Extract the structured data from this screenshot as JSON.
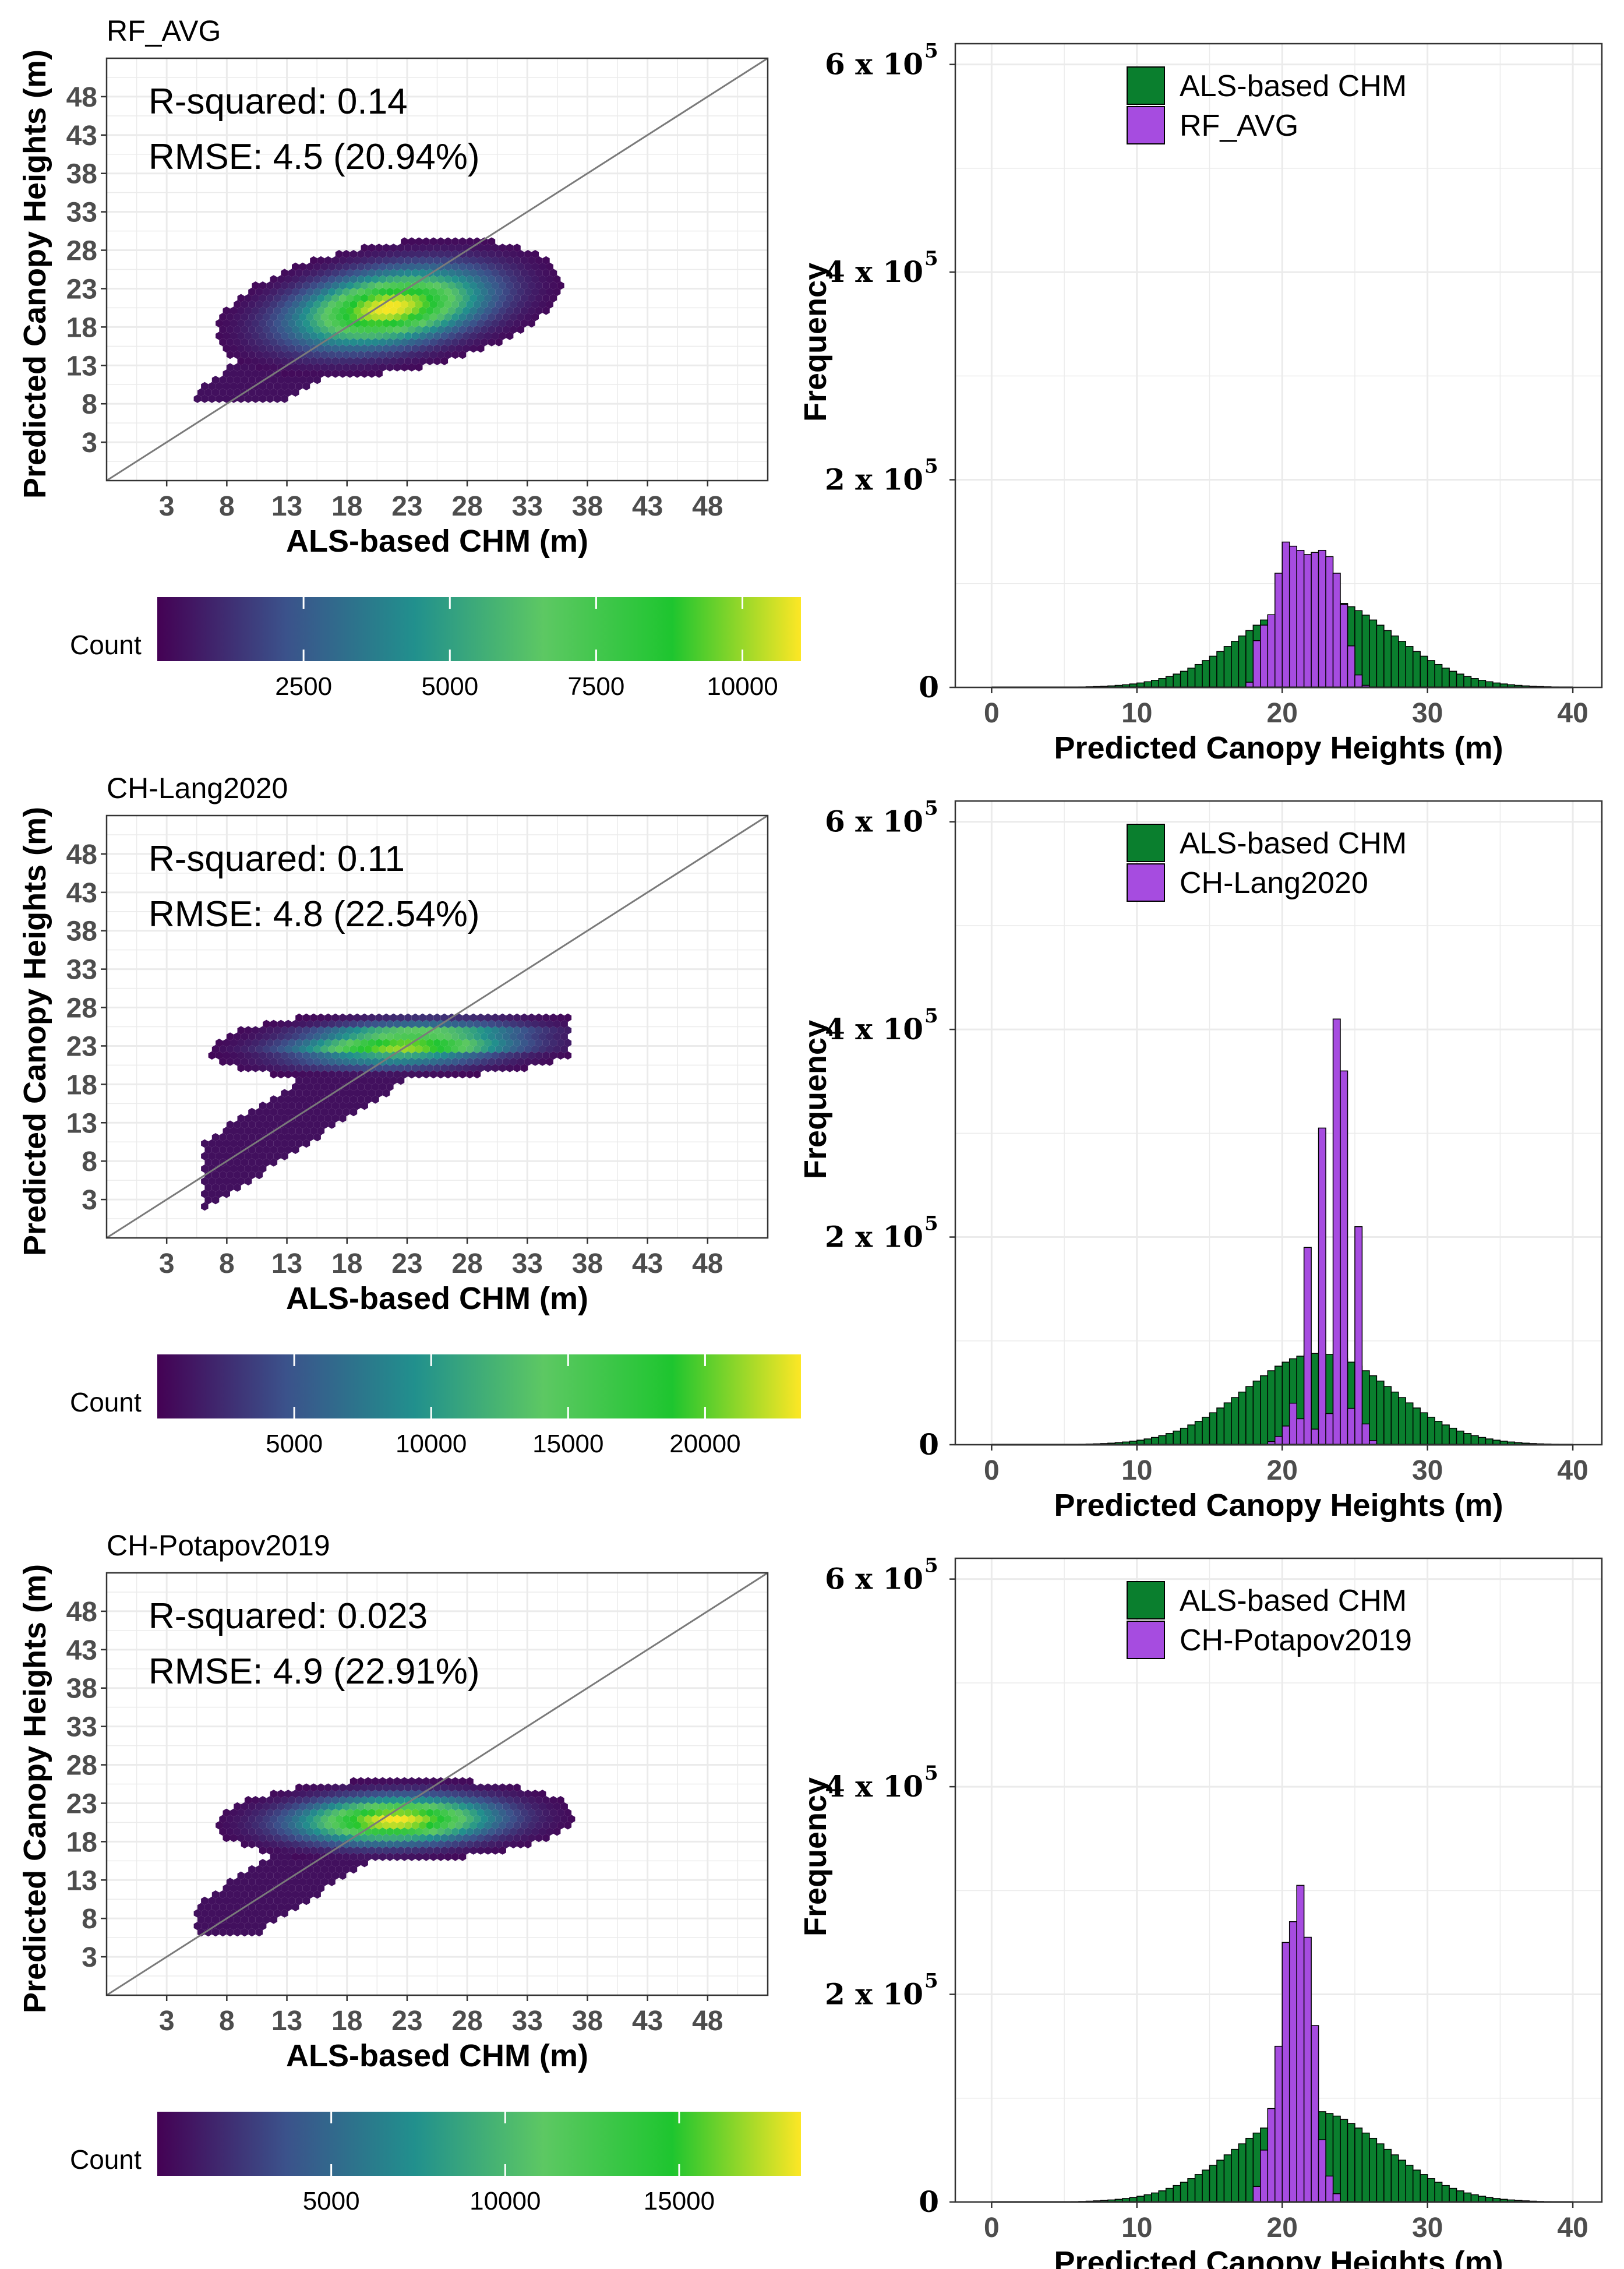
{
  "colors": {
    "als": "#0a7f2e",
    "pred": "#a64ce0",
    "viridis": [
      "#440154",
      "#3b528b",
      "#21908d",
      "#5dc863",
      "#1ec52f",
      "#fde725"
    ],
    "grid": "#ebebeb",
    "panel_border": "#333333"
  },
  "chart_data": [
    {
      "type": "hexbin",
      "title": "RF_AVG",
      "xlabel": "ALS-based CHM (m)",
      "ylabel": "Predicted Canopy Heights (m)",
      "xticks": [
        "3",
        "8",
        "13",
        "18",
        "23",
        "28",
        "33",
        "38",
        "43",
        "48"
      ],
      "yticks": [
        "48",
        "43",
        "38",
        "33",
        "28",
        "23",
        "18",
        "13",
        "8",
        "3"
      ],
      "xlim": [
        -2,
        53
      ],
      "ylim": [
        -2,
        53
      ],
      "r_squared_text": "R-squared: 0.14",
      "rmse_text": "RMSE: 4.5 (20.94%)",
      "density": {
        "cx": 21.5,
        "cy": 20.5,
        "sx": 4.8,
        "sy": 3.0,
        "rho": 0.35,
        "xmin": 5.5,
        "xmax": 36.5,
        "ymin": 8.0,
        "ymax": 32.5,
        "banded": false
      },
      "colorbar": {
        "label": "Count",
        "max": 11000,
        "ticks": [
          "2500",
          "5000",
          "7500",
          "10000"
        ]
      }
    },
    {
      "type": "bar",
      "title": "",
      "xlabel": "Predicted Canopy Heights (m)",
      "ylabel": "Frequency",
      "xticks": [
        "0",
        "10",
        "20",
        "30",
        "40"
      ],
      "ytick_mantissas": [
        "0",
        "2 x 10",
        "4 x 10",
        "6 x 10"
      ],
      "ytick_exponent": "5",
      "xlim": [
        -2.5,
        42
      ],
      "ylim": [
        0,
        620000
      ],
      "legend": [
        "ALS-based CHM",
        "RF_AVG"
      ],
      "series": [
        {
          "name": "ALS-based CHM",
          "kind": "gauss",
          "mean": 22.5,
          "sd": 5.0,
          "peak": 86000,
          "lo": 1.0,
          "hi": 39.5
        },
        {
          "name": "RF_AVG",
          "kind": "pmf",
          "start": 17.5,
          "width": 0.5,
          "values": [
            5000,
            45000,
            60000,
            70000,
            110000,
            140000,
            136000,
            132000,
            128000,
            130000,
            132000,
            126000,
            110000,
            80000,
            40000,
            12000,
            2000
          ]
        }
      ]
    },
    {
      "type": "hexbin",
      "title": "CH-Lang2020",
      "xlabel": "ALS-based CHM (m)",
      "ylabel": "Predicted Canopy Heights (m)",
      "xticks": [
        "3",
        "8",
        "13",
        "18",
        "23",
        "28",
        "33",
        "38",
        "43",
        "48"
      ],
      "yticks": [
        "48",
        "43",
        "38",
        "33",
        "28",
        "23",
        "18",
        "13",
        "8",
        "3"
      ],
      "xlim": [
        -2,
        53
      ],
      "ylim": [
        -2,
        53
      ],
      "r_squared_text": "R-squared: 0.11",
      "rmse_text": "RMSE: 4.8 (22.54%)",
      "density": {
        "cx": 23.0,
        "cy": 23.3,
        "sx": 5.5,
        "sy": 1.6,
        "rho": 0.2,
        "xmin": 6.0,
        "xmax": 36.5,
        "ymin": 1.5,
        "ymax": 27.0,
        "banded": true
      },
      "colorbar": {
        "label": "Count",
        "max": 23500,
        "ticks": [
          "5000",
          "10000",
          "15000",
          "20000"
        ]
      }
    },
    {
      "type": "bar",
      "title": "",
      "xlabel": "Predicted Canopy Heights (m)",
      "ylabel": "Frequency",
      "xticks": [
        "0",
        "10",
        "20",
        "30",
        "40"
      ],
      "ytick_mantissas": [
        "0",
        "2 x 10",
        "4 x 10",
        "6 x 10"
      ],
      "ytick_exponent": "5",
      "xlim": [
        -2.5,
        42
      ],
      "ylim": [
        0,
        620000
      ],
      "legend": [
        "ALS-based CHM",
        "CH-Lang2020"
      ],
      "series": [
        {
          "name": "ALS-based CHM",
          "kind": "gauss",
          "mean": 22.5,
          "sd": 5.0,
          "peak": 88000,
          "lo": 1.0,
          "hi": 39.5
        },
        {
          "name": "CH-Lang2020",
          "kind": "pmf",
          "start": 19.0,
          "width": 0.5,
          "values": [
            3000,
            8000,
            18000,
            40000,
            25000,
            190000,
            15000,
            305000,
            30000,
            410000,
            360000,
            35000,
            210000,
            20000,
            4000
          ]
        }
      ]
    },
    {
      "type": "hexbin",
      "title": "CH-Potapov2019",
      "xlabel": "ALS-based CHM (m)",
      "ylabel": "Predicted Canopy Heights (m)",
      "xticks": [
        "3",
        "8",
        "13",
        "18",
        "23",
        "28",
        "33",
        "38",
        "43",
        "48"
      ],
      "yticks": [
        "48",
        "43",
        "38",
        "33",
        "28",
        "23",
        "18",
        "13",
        "8",
        "3"
      ],
      "xlim": [
        -2,
        53
      ],
      "ylim": [
        -2,
        53
      ],
      "r_squared_text": "R-squared: 0.023",
      "rmse_text": "RMSE: 4.9 (22.91%)",
      "density": {
        "cx": 22.0,
        "cy": 20.8,
        "sx": 5.0,
        "sy": 1.8,
        "rho": 0.1,
        "xmin": 5.5,
        "xmax": 37.0,
        "ymin": 6.0,
        "ymax": 26.5,
        "banded": false
      },
      "colorbar": {
        "label": "Count",
        "max": 18500,
        "ticks": [
          "5000",
          "10000",
          "15000"
        ]
      }
    },
    {
      "type": "bar",
      "title": "",
      "xlabel": "Predicted Canopy Heights (m)",
      "ylabel": "Frequency",
      "xticks": [
        "0",
        "10",
        "20",
        "30",
        "40"
      ],
      "ytick_mantissas": [
        "0",
        "2 x 10",
        "4 x 10",
        "6 x 10"
      ],
      "ytick_exponent": "5",
      "xlim": [
        -2.5,
        42
      ],
      "ylim": [
        0,
        620000
      ],
      "legend": [
        "ALS-based CHM",
        "CH-Potapov2019"
      ],
      "series": [
        {
          "name": "ALS-based CHM",
          "kind": "gauss",
          "mean": 22.0,
          "sd": 5.0,
          "peak": 88000,
          "lo": 1.0,
          "hi": 39.5
        },
        {
          "name": "CH-Potapov2019",
          "kind": "pmf",
          "start": 18.0,
          "width": 0.5,
          "values": [
            15000,
            50000,
            90000,
            150000,
            250000,
            270000,
            305000,
            255000,
            170000,
            60000,
            25000,
            8000
          ]
        }
      ]
    }
  ]
}
